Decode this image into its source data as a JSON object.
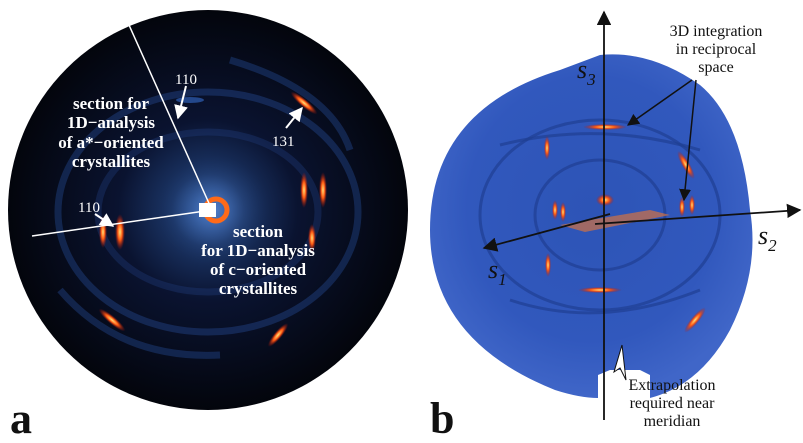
{
  "panel_a": {
    "letter": "a",
    "labels": {
      "refl_110_top": "110",
      "refl_131": "131",
      "refl_110_left": "110",
      "section_a": [
        "section for",
        "1D−analysis",
        "of a*−oriented",
        "crystallites"
      ],
      "section_c": [
        "section",
        "for 1D−analysis",
        "of c−oriented",
        "crystallites"
      ]
    }
  },
  "panel_b": {
    "letter": "b",
    "axes": {
      "s1": {
        "base": "s",
        "sub": "1"
      },
      "s2": {
        "base": "s",
        "sub": "2"
      },
      "s3": {
        "base": "s",
        "sub": "3"
      }
    },
    "integration_label": [
      "3D integration",
      "in reciprocal",
      "space"
    ],
    "extrapolation_label": [
      "Extrapolation",
      "required near",
      "meridian"
    ]
  },
  "colors": {
    "detector_outer": "#05070f",
    "detector_glow": "#2a4f96",
    "ewald_blue": "#3056b8",
    "reflection_hot": "#ff3a10",
    "reflection_core": "#ffe070",
    "annotation_white": "#ffffff",
    "annotation_black": "#111111"
  }
}
